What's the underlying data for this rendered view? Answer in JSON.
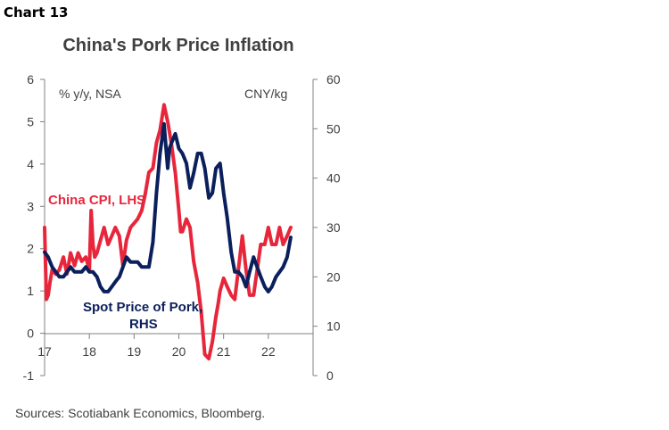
{
  "chart_number": "Chart 13",
  "source": "Sources: Scotiabank Economics, Bloomberg.",
  "colors": {
    "cpi": "#e8263b",
    "pork": "#0b1f5c",
    "axis": "#808080",
    "text": "#404040"
  },
  "chart_data": {
    "type": "line",
    "title": "China's Pork Price Inflation",
    "left_axis": {
      "unit_label": "% y/y, NSA",
      "ylim": [
        -1,
        6
      ],
      "ticks": [
        "-1",
        "0",
        "1",
        "2",
        "3",
        "4",
        "5",
        "6"
      ]
    },
    "right_axis": {
      "unit_label": "CNY/kg",
      "ylim": [
        0,
        60
      ],
      "ticks": [
        "0",
        "10",
        "20",
        "30",
        "40",
        "50",
        "60"
      ]
    },
    "x_axis": {
      "xlim": [
        2017,
        2023
      ],
      "tick_values": [
        2017,
        2018,
        2019,
        2020,
        2021,
        2022
      ],
      "tick_labels": [
        "17",
        "18",
        "19",
        "20",
        "21",
        "22"
      ]
    },
    "grid": false,
    "series": [
      {
        "name": "China CPI, LHS",
        "axis": "left",
        "x": [
          2017.0,
          2017.04,
          2017.08,
          2017.12,
          2017.17,
          2017.25,
          2017.33,
          2017.42,
          2017.5,
          2017.58,
          2017.67,
          2017.75,
          2017.83,
          2017.92,
          2018.0,
          2018.04,
          2018.08,
          2018.12,
          2018.17,
          2018.25,
          2018.33,
          2018.42,
          2018.5,
          2018.58,
          2018.67,
          2018.75,
          2018.83,
          2018.92,
          2019.0,
          2019.08,
          2019.17,
          2019.25,
          2019.33,
          2019.42,
          2019.5,
          2019.58,
          2019.67,
          2019.75,
          2019.83,
          2019.92,
          2020.0,
          2020.04,
          2020.08,
          2020.17,
          2020.25,
          2020.33,
          2020.42,
          2020.5,
          2020.58,
          2020.67,
          2020.75,
          2020.83,
          2020.88,
          2020.92,
          2021.0,
          2021.08,
          2021.17,
          2021.25,
          2021.33,
          2021.42,
          2021.5,
          2021.58,
          2021.67,
          2021.75,
          2021.83,
          2021.92,
          2022.0,
          2022.08,
          2022.17,
          2022.25,
          2022.33,
          2022.42,
          2022.5
        ],
        "values": [
          2.5,
          0.8,
          0.9,
          1.2,
          1.5,
          1.4,
          1.5,
          1.8,
          1.4,
          1.9,
          1.6,
          1.9,
          1.7,
          1.8,
          1.5,
          2.9,
          2.1,
          1.8,
          1.9,
          2.2,
          2.5,
          2.1,
          2.3,
          2.5,
          2.3,
          1.6,
          2.2,
          2.5,
          2.6,
          2.7,
          2.9,
          3.3,
          3.8,
          3.9,
          4.5,
          4.8,
          5.4,
          5.0,
          4.5,
          3.8,
          2.9,
          2.4,
          2.4,
          2.7,
          2.5,
          1.7,
          1.2,
          0.5,
          -0.5,
          -0.6,
          -0.2,
          0.4,
          0.7,
          1.0,
          1.3,
          1.1,
          0.9,
          0.8,
          1.5,
          2.3,
          1.5,
          0.9,
          0.9,
          1.5,
          2.1,
          2.1,
          2.5,
          2.1,
          2.1,
          2.5,
          2.1,
          2.3,
          2.5
        ]
      },
      {
        "name": "Spot Price of Pork, RHS",
        "axis": "right",
        "x": [
          2017.0,
          2017.08,
          2017.17,
          2017.25,
          2017.33,
          2017.42,
          2017.5,
          2017.58,
          2017.67,
          2017.75,
          2017.83,
          2017.92,
          2018.0,
          2018.08,
          2018.17,
          2018.25,
          2018.33,
          2018.42,
          2018.5,
          2018.58,
          2018.67,
          2018.75,
          2018.83,
          2018.92,
          2019.0,
          2019.08,
          2019.17,
          2019.25,
          2019.33,
          2019.42,
          2019.5,
          2019.58,
          2019.67,
          2019.75,
          2019.79,
          2019.83,
          2019.92,
          2020.0,
          2020.08,
          2020.17,
          2020.25,
          2020.33,
          2020.42,
          2020.5,
          2020.58,
          2020.67,
          2020.75,
          2020.83,
          2020.92,
          2021.0,
          2021.08,
          2021.17,
          2021.25,
          2021.33,
          2021.42,
          2021.5,
          2021.58,
          2021.67,
          2021.75,
          2021.83,
          2021.92,
          2022.0,
          2022.08,
          2022.17,
          2022.25,
          2022.33,
          2022.42,
          2022.5
        ],
        "values": [
          25,
          24,
          22,
          21,
          20,
          20,
          21,
          22,
          21,
          21,
          21,
          22,
          21,
          21,
          20,
          18,
          17,
          17,
          18,
          19,
          20,
          22,
          24,
          23,
          23,
          23,
          22,
          22,
          22,
          27,
          37,
          45,
          51,
          42,
          46,
          47,
          49,
          46,
          45,
          43,
          38,
          41,
          45,
          45,
          42,
          36,
          37,
          42,
          43,
          37,
          32,
          25,
          21,
          21,
          20,
          18,
          21,
          24,
          22,
          20,
          18,
          17,
          18,
          20,
          21,
          22,
          24,
          28
        ]
      }
    ],
    "annotations": [
      {
        "text": "China CPI, LHS",
        "series": "China CPI, LHS"
      },
      {
        "text": "Spot Price of Pork,",
        "series": "Spot Price of Pork, RHS"
      },
      {
        "text": "RHS",
        "series": "Spot Price of Pork, RHS"
      }
    ]
  }
}
